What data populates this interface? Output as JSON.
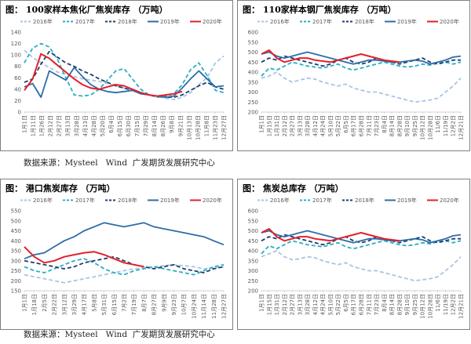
{
  "source_top": "数据来源：Mysteel   Wind  广发期货发展研究中心",
  "source_bottom": "数据来源：Mysteel   Wind  广发期货发展研究中心",
  "colors": {
    "2016年": "#a9c4e4",
    "2017年": "#2aaec4",
    "2018年": "#1f3d6b",
    "2019年": "#2e6ca8",
    "2020年": "#e3202a"
  },
  "styles": {
    "2016年": "dash",
    "2017年": "dash",
    "2018年": "dash",
    "2019年": "solid",
    "2020年": "solid"
  },
  "chart_data": [
    {
      "type": "line",
      "title": "图：  100家样本焦化厂焦炭库存  （万吨）",
      "ylim": [
        0,
        140
      ],
      "yticks": [
        0,
        20,
        40,
        60,
        80,
        100,
        120,
        140
      ],
      "xticks": [
        "1月1日",
        "1月11日",
        "1月26日",
        "2月12日",
        "2月27日",
        "3月13日",
        "3月28日",
        "4月13日",
        "4月28日",
        "5月20日",
        "6月4日",
        "6月15日",
        "6月30日",
        "7月15日",
        "7月29日",
        "8月14日",
        "8月26日",
        "9月8日",
        "9月21日",
        "10月13日",
        "10月28日",
        "11月8日",
        "11月23日",
        "12月27日"
      ],
      "series": [
        {
          "name": "2016年",
          "values": [
            108,
            96,
            86,
            78,
            70,
            66,
            62,
            58,
            56,
            54,
            50,
            46,
            42,
            38,
            34,
            30,
            27,
            24,
            22,
            26,
            34,
            48,
            60,
            86,
            98
          ]
        },
        {
          "name": "2017年",
          "values": [
            86,
            112,
            120,
            114,
            92,
            60,
            30,
            28,
            30,
            40,
            56,
            72,
            76,
            58,
            40,
            30,
            26,
            28,
            32,
            48,
            74,
            86,
            64,
            38,
            34
          ]
        },
        {
          "name": "2018年",
          "values": [
            52,
            58,
            84,
            106,
            96,
            86,
            80,
            72,
            66,
            58,
            52,
            46,
            42,
            38,
            34,
            30,
            28,
            26,
            26,
            30,
            38,
            46,
            52,
            44,
            40
          ]
        },
        {
          "name": "2019年",
          "values": [
            44,
            50,
            26,
            72,
            64,
            56,
            78,
            62,
            48,
            40,
            36,
            34,
            36,
            38,
            32,
            30,
            28,
            26,
            28,
            42,
            58,
            72,
            58,
            44,
            46
          ]
        },
        {
          "name": "2020年",
          "values": [
            38,
            58,
            102,
            94,
            82,
            70,
            58,
            48,
            42,
            40,
            44,
            48,
            46,
            40,
            34,
            30,
            28,
            30,
            32,
            36
          ]
        }
      ]
    },
    {
      "type": "line",
      "title": "图：  110家样本钢厂焦炭库存  （万吨）",
      "ylim": [
        200,
        600
      ],
      "yticks": [
        200,
        250,
        300,
        350,
        400,
        450,
        500,
        550,
        600
      ],
      "xticks": [
        "1月1日",
        "1月15日",
        "1月31日",
        "2月12日",
        "2月27日",
        "3月13日",
        "3月28日",
        "4月12日",
        "4月24日",
        "5月10日",
        "5月22日",
        "6月5日",
        "6月17日",
        "6月28日",
        "7月11日",
        "7月23日",
        "8月4日",
        "8月14日",
        "8月28日",
        "9月10日",
        "9月25日",
        "10月12日",
        "10月28日",
        "11/6日",
        "11/19日",
        "12月2日",
        "12月21日"
      ],
      "series": [
        {
          "name": "2016年",
          "values": [
            370,
            380,
            400,
            370,
            350,
            360,
            370,
            365,
            350,
            340,
            330,
            340,
            320,
            310,
            300,
            300,
            290,
            280,
            270,
            260,
            250,
            255,
            260,
            270,
            300,
            330,
            370
          ]
        },
        {
          "name": "2017年",
          "values": [
            380,
            420,
            410,
            430,
            450,
            440,
            430,
            425,
            420,
            430,
            440,
            420,
            410,
            420,
            430,
            440,
            450,
            440,
            430,
            425,
            430,
            440,
            435,
            445,
            450,
            440,
            450
          ]
        },
        {
          "name": "2018年",
          "values": [
            450,
            470,
            460,
            480,
            470,
            460,
            450,
            440,
            430,
            440,
            460,
            470,
            450,
            440,
            450,
            470,
            460,
            450,
            440,
            450,
            460,
            470,
            450,
            440,
            450,
            460,
            460
          ]
        },
        {
          "name": "2019年",
          "values": [
            490,
            500,
            480,
            470,
            480,
            490,
            500,
            490,
            480,
            470,
            460,
            450,
            440,
            450,
            460,
            460,
            455,
            450,
            450,
            455,
            460,
            455,
            440,
            450,
            460,
            475,
            480
          ]
        },
        {
          "name": "2020年",
          "values": [
            490,
            510,
            470,
            450,
            460,
            470,
            470,
            460,
            455,
            450,
            460,
            470,
            480,
            490,
            480,
            470,
            460,
            455,
            450
          ]
        }
      ]
    },
    {
      "type": "line",
      "title": "图：  港口焦炭库存  （万吨）",
      "ylim": [
        150,
        550
      ],
      "yticks": [
        150,
        200,
        250,
        300,
        350,
        400,
        450,
        500,
        550
      ],
      "xticks": [
        "1月1日",
        "1月18日",
        "2月5日",
        "2月22日",
        "3月12日",
        "3月29日",
        "4月17日",
        "5月8日",
        "5月31日",
        "6月15日",
        "7月2日",
        "7月19日",
        "8月7日",
        "8月27日",
        "9月9日",
        "9月23日",
        "10月7日",
        "10月24日",
        "11月14日",
        "11月28日",
        "12月27日"
      ],
      "series": [
        {
          "name": "2016年",
          "values": [
            230,
            220,
            210,
            200,
            190,
            200,
            210,
            220,
            230,
            240,
            250,
            260,
            265,
            270,
            275,
            280,
            275,
            270,
            260,
            265,
            270
          ]
        },
        {
          "name": "2017年",
          "values": [
            270,
            250,
            240,
            260,
            280,
            300,
            310,
            290,
            260,
            240,
            230,
            250,
            260,
            270,
            260,
            250,
            240,
            230,
            250,
            270,
            280
          ]
        },
        {
          "name": "2018年",
          "values": [
            300,
            290,
            280,
            270,
            260,
            270,
            290,
            300,
            310,
            320,
            300,
            280,
            270,
            260,
            270,
            280,
            260,
            250,
            240,
            260,
            270
          ]
        },
        {
          "name": "2019年",
          "values": [
            310,
            330,
            340,
            370,
            400,
            420,
            450,
            470,
            490,
            480,
            470,
            480,
            490,
            470,
            460,
            450,
            440,
            430,
            420,
            400,
            380
          ]
        },
        {
          "name": "2020年",
          "values": [
            370,
            320,
            290,
            300,
            320,
            330,
            340,
            345,
            330,
            310,
            290,
            280,
            270
          ]
        }
      ]
    },
    {
      "type": "line",
      "title": "图：  焦炭总库存  （万吨）",
      "ylim": [
        200,
        600
      ],
      "yticks": [
        200,
        250,
        300,
        350,
        400,
        450,
        500,
        550,
        600
      ],
      "xticks": [
        "1月1日",
        "1月15日",
        "1月31日",
        "2月12日",
        "2月27日",
        "3月13日",
        "3月28日",
        "4月12日",
        "4月24日",
        "5月10日",
        "5月22日",
        "6月5日",
        "6月17日",
        "6月28日",
        "7月11日",
        "7月23日",
        "8月4日",
        "8月14日",
        "8月28日",
        "9月10日",
        "9月25日",
        "10月12日",
        "10月28日",
        "11/6日",
        "11/19日",
        "12月2日",
        "12月21日"
      ],
      "series": [
        {
          "name": "2016年",
          "values": [
            370,
            385,
            400,
            370,
            355,
            360,
            370,
            365,
            350,
            340,
            330,
            340,
            320,
            310,
            300,
            300,
            290,
            280,
            270,
            260,
            250,
            255,
            260,
            270,
            300,
            330,
            370
          ]
        },
        {
          "name": "2017年",
          "values": [
            385,
            425,
            410,
            430,
            450,
            440,
            430,
            425,
            420,
            430,
            440,
            420,
            410,
            420,
            430,
            440,
            450,
            440,
            430,
            425,
            430,
            440,
            435,
            445,
            450,
            440,
            450
          ]
        },
        {
          "name": "2018年",
          "values": [
            450,
            470,
            460,
            480,
            470,
            460,
            450,
            440,
            430,
            440,
            460,
            470,
            450,
            440,
            450,
            470,
            460,
            450,
            440,
            450,
            460,
            470,
            450,
            440,
            450,
            460,
            460
          ]
        },
        {
          "name": "2019年",
          "values": [
            490,
            500,
            480,
            470,
            480,
            490,
            500,
            490,
            480,
            470,
            460,
            450,
            440,
            450,
            460,
            460,
            455,
            450,
            450,
            455,
            460,
            455,
            440,
            450,
            460,
            475,
            480
          ]
        },
        {
          "name": "2020年",
          "values": [
            490,
            510,
            470,
            450,
            460,
            470,
            470,
            460,
            455,
            450,
            460,
            470,
            480,
            490,
            480,
            470,
            460,
            455,
            450
          ]
        }
      ]
    }
  ]
}
